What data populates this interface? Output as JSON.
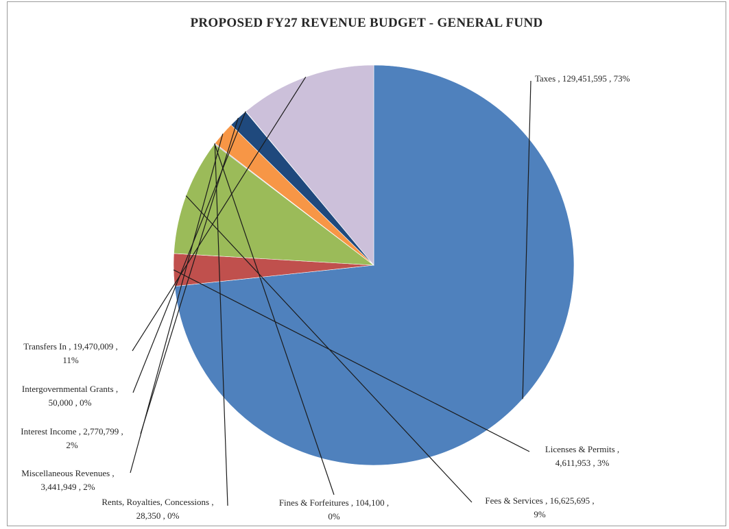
{
  "chart_data": {
    "type": "pie",
    "title": "PROPOSED FY27 REVENUE BUDGET - GENERAL FUND",
    "slices": [
      {
        "name": "Taxes",
        "value": 129451595,
        "percent": "73%",
        "color": "#4f81bd",
        "label_lines": [
          "Taxes ,  129,451,595 , 73%"
        ]
      },
      {
        "name": "Licenses & Permits",
        "value": 4611953,
        "percent": "3%",
        "color": "#c0504d",
        "label_lines": [
          "Licenses & Permits ,",
          "4,611,953 , 3%"
        ]
      },
      {
        "name": "Fees & Services",
        "value": 16625695,
        "percent": "9%",
        "color": "#9bbb59",
        "label_lines": [
          "Fees & Services ,  16,625,695 ,",
          "9%"
        ]
      },
      {
        "name": "Fines & Forfeitures",
        "value": 104100,
        "percent": "0%",
        "color": "#8064a2",
        "label_lines": [
          "Fines & Forfeitures ,  104,100 ,",
          "0%"
        ]
      },
      {
        "name": "Rents, Royalties, Concessions",
        "value": 28350,
        "percent": "0%",
        "color": "#4bacc6",
        "label_lines": [
          "Rents, Royalties, Concessions ,",
          "28,350 , 0%"
        ]
      },
      {
        "name": "Miscellaneous Revenues",
        "value": 3441949,
        "percent": "2%",
        "color": "#f79646",
        "label_lines": [
          "Miscellaneous Revenues ,",
          "3,441,949 , 2%"
        ]
      },
      {
        "name": "Interest Income",
        "value": 2770799,
        "percent": "2%",
        "color": "#1f497d",
        "label_lines": [
          "Interest Income ,  2,770,799 ,",
          "2%"
        ]
      },
      {
        "name": "Intergovernmental Grants",
        "value": 50000,
        "percent": "0%",
        "color": "#4d4d4d",
        "label_lines": [
          "Intergovernmental Grants ,",
          "50,000 , 0%"
        ]
      },
      {
        "name": "Transfers In",
        "value": 19470009,
        "percent": "11%",
        "color": "#ccc0da",
        "label_lines": [
          "Transfers In ,  19,470,009 ,",
          "11%"
        ]
      }
    ],
    "legend": "none",
    "data_labels": "outside with leader lines"
  }
}
